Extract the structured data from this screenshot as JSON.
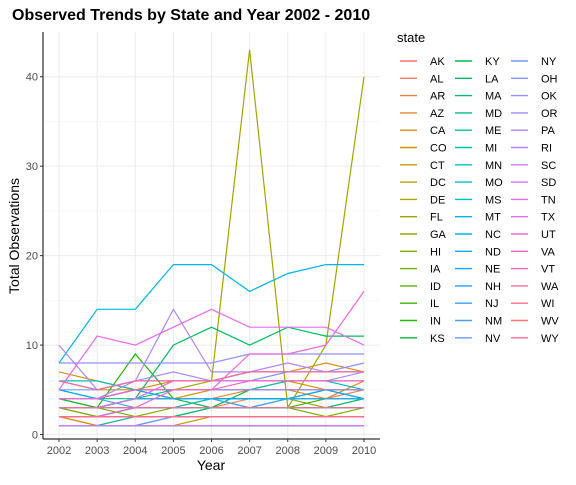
{
  "chart_data": {
    "type": "line",
    "title": "Observed Trends by State and Year 2002 - 2010",
    "xlabel": "Year",
    "ylabel": "Total Observations",
    "x": [
      2002,
      2003,
      2004,
      2005,
      2006,
      2007,
      2008,
      2009,
      2010
    ],
    "yticks": [
      0,
      10,
      20,
      30,
      40
    ],
    "ylim": [
      -0.5,
      45
    ],
    "grid": true,
    "legend": {
      "title": "state",
      "position": "right",
      "columns": 3
    },
    "series": [
      {
        "name": "AK",
        "color": "#F8766D",
        "values": [
          1,
          1,
          1,
          1,
          1,
          1,
          1,
          1,
          1
        ]
      },
      {
        "name": "AL",
        "color": "#F47A5A",
        "values": [
          3,
          2,
          3,
          3,
          3,
          4,
          4,
          4,
          5
        ]
      },
      {
        "name": "AR",
        "color": "#EE8044",
        "values": [
          2,
          1,
          2,
          2,
          2,
          2,
          2,
          2,
          2
        ]
      },
      {
        "name": "AZ",
        "color": "#E6862D",
        "values": [
          4,
          3,
          4,
          4,
          4,
          5,
          5,
          4,
          6
        ]
      },
      {
        "name": "CA",
        "color": "#DD8D14",
        "values": [
          7,
          6,
          5,
          6,
          6,
          7,
          7,
          8,
          7
        ]
      },
      {
        "name": "CO",
        "color": "#D39200",
        "values": [
          6,
          5,
          5,
          4,
          5,
          5,
          6,
          5,
          5
        ]
      },
      {
        "name": "CT",
        "color": "#C79800",
        "values": [
          2,
          1,
          1,
          1,
          2,
          2,
          2,
          2,
          2
        ]
      },
      {
        "name": "DC",
        "color": "#BB9D00",
        "values": [
          1,
          1,
          1,
          1,
          1,
          1,
          1,
          1,
          1
        ]
      },
      {
        "name": "DE",
        "color": "#ADA200",
        "values": [
          1,
          1,
          1,
          1,
          1,
          1,
          1,
          1,
          1
        ]
      },
      {
        "name": "FL",
        "color": "#A3A500",
        "values": [
          5,
          4,
          5,
          5,
          6,
          43,
          3,
          10,
          40
        ]
      },
      {
        "name": "GA",
        "color": "#93AA00",
        "values": [
          2,
          2,
          3,
          3,
          4,
          3,
          4,
          3,
          4
        ]
      },
      {
        "name": "HI",
        "color": "#82AD00",
        "values": [
          3,
          3,
          2,
          3,
          3,
          3,
          3,
          2,
          3
        ]
      },
      {
        "name": "IA",
        "color": "#6FB000",
        "values": [
          3,
          2,
          3,
          3,
          3,
          3,
          3,
          3,
          3
        ]
      },
      {
        "name": "ID",
        "color": "#5BB300",
        "values": [
          1,
          1,
          1,
          2,
          2,
          2,
          2,
          2,
          2
        ]
      },
      {
        "name": "IL",
        "color": "#3CB500",
        "values": [
          2,
          2,
          2,
          2,
          3,
          3,
          3,
          4,
          4
        ]
      },
      {
        "name": "IN",
        "color": "#1EB900",
        "values": [
          3,
          3,
          9,
          4,
          4,
          4,
          4,
          5,
          5
        ]
      },
      {
        "name": "KS",
        "color": "#00BA38",
        "values": [
          4,
          3,
          4,
          4,
          4,
          4,
          4,
          4,
          4
        ]
      },
      {
        "name": "KY",
        "color": "#00BC4C",
        "values": [
          3,
          3,
          4,
          4,
          3,
          5,
          5,
          5,
          5
        ]
      },
      {
        "name": "LA",
        "color": "#00BE5F",
        "values": [
          3,
          3,
          4,
          10,
          12,
          10,
          12,
          11,
          11
        ]
      },
      {
        "name": "MA",
        "color": "#00BF75",
        "values": [
          2,
          2,
          2,
          2,
          3,
          3,
          3,
          3,
          4
        ]
      },
      {
        "name": "MD",
        "color": "#00C087",
        "values": [
          4,
          4,
          4,
          5,
          5,
          5,
          5,
          5,
          4
        ]
      },
      {
        "name": "ME",
        "color": "#00C097",
        "values": [
          2,
          2,
          2,
          2,
          2,
          2,
          2,
          2,
          2
        ]
      },
      {
        "name": "MI",
        "color": "#00C1A8",
        "values": [
          1,
          1,
          2,
          2,
          2,
          2,
          2,
          2,
          2
        ]
      },
      {
        "name": "MN",
        "color": "#00C0B8",
        "values": [
          6,
          6,
          5,
          5,
          5,
          5,
          6,
          6,
          5
        ]
      },
      {
        "name": "MO",
        "color": "#00BFC4",
        "values": [
          2,
          2,
          3,
          3,
          4,
          4,
          4,
          4,
          4
        ]
      },
      {
        "name": "MS",
        "color": "#00BCD6",
        "values": [
          2,
          2,
          2,
          2,
          2,
          2,
          2,
          2,
          2
        ]
      },
      {
        "name": "MT",
        "color": "#00B8E5",
        "values": [
          3,
          3,
          3,
          3,
          3,
          3,
          3,
          3,
          3
        ]
      },
      {
        "name": "NC",
        "color": "#00B4EF",
        "values": [
          8,
          14,
          14,
          19,
          19,
          16,
          18,
          19,
          19
        ]
      },
      {
        "name": "ND",
        "color": "#00B0F6",
        "values": [
          1,
          1,
          1,
          1,
          1,
          1,
          1,
          1,
          1
        ]
      },
      {
        "name": "NE",
        "color": "#00A8FF",
        "values": [
          5,
          4,
          5,
          4,
          4,
          4,
          4,
          5,
          4
        ]
      },
      {
        "name": "NH",
        "color": "#1EA4FF",
        "values": [
          3,
          3,
          3,
          3,
          3,
          3,
          3,
          3,
          3
        ]
      },
      {
        "name": "NJ",
        "color": "#35A2FF",
        "values": [
          3,
          3,
          4,
          4,
          4,
          3,
          4,
          4,
          4
        ]
      },
      {
        "name": "NM",
        "color": "#4A9EFF",
        "values": [
          4,
          4,
          3,
          3,
          3,
          3,
          3,
          3,
          3
        ]
      },
      {
        "name": "NV",
        "color": "#619CFF",
        "values": [
          1,
          1,
          1,
          2,
          2,
          2,
          2,
          2,
          2
        ]
      },
      {
        "name": "NY",
        "color": "#7299FF",
        "values": [
          5,
          5,
          6,
          6,
          6,
          7,
          7,
          7,
          7
        ]
      },
      {
        "name": "OH",
        "color": "#8494FF",
        "values": [
          6,
          5,
          6,
          6,
          6,
          6,
          7,
          7,
          8
        ]
      },
      {
        "name": "OK",
        "color": "#9590FF",
        "values": [
          8,
          8,
          8,
          8,
          8,
          9,
          9,
          9,
          9
        ]
      },
      {
        "name": "OR",
        "color": "#A58AFF",
        "values": [
          10,
          5,
          6,
          7,
          6,
          6,
          6,
          6,
          7
        ]
      },
      {
        "name": "PA",
        "color": "#B385FF",
        "values": [
          4,
          4,
          6,
          14,
          7,
          7,
          8,
          7,
          7
        ]
      },
      {
        "name": "RI",
        "color": "#C07FFF",
        "values": [
          2,
          2,
          2,
          2,
          2,
          2,
          2,
          2,
          2
        ]
      },
      {
        "name": "SC",
        "color": "#CC7AF8",
        "values": [
          4,
          4,
          5,
          5,
          5,
          5,
          5,
          5,
          5
        ]
      },
      {
        "name": "SD",
        "color": "#D774EF",
        "values": [
          1,
          1,
          1,
          1,
          1,
          1,
          1,
          1,
          1
        ]
      },
      {
        "name": "TN",
        "color": "#E16FE5",
        "values": [
          3,
          3,
          4,
          6,
          6,
          6,
          6,
          6,
          6
        ]
      },
      {
        "name": "TX",
        "color": "#E76BF3",
        "values": [
          5,
          11,
          10,
          12,
          14,
          12,
          12,
          12,
          10
        ]
      },
      {
        "name": "UT",
        "color": "#EE68D8",
        "values": [
          2,
          2,
          3,
          5,
          5,
          9,
          9,
          10,
          16
        ]
      },
      {
        "name": "VA",
        "color": "#F365C5",
        "values": [
          4,
          4,
          5,
          5,
          5,
          6,
          6,
          6,
          6
        ]
      },
      {
        "name": "VT",
        "color": "#F766B0",
        "values": [
          2,
          2,
          2,
          2,
          2,
          2,
          2,
          2,
          2
        ]
      },
      {
        "name": "WA",
        "color": "#FA6A9D",
        "values": [
          6,
          5,
          6,
          6,
          6,
          7,
          7,
          7,
          7
        ]
      },
      {
        "name": "WI",
        "color": "#FC6E89",
        "values": [
          3,
          3,
          3,
          3,
          3,
          3,
          3,
          3,
          3
        ]
      },
      {
        "name": "WV",
        "color": "#FD7377",
        "values": [
          2,
          2,
          2,
          2,
          2,
          2,
          2,
          2,
          2
        ]
      },
      {
        "name": "WY",
        "color": "#FF6C91",
        "values": [
          2,
          2,
          2,
          2,
          2,
          2,
          2,
          2,
          2
        ]
      }
    ]
  }
}
